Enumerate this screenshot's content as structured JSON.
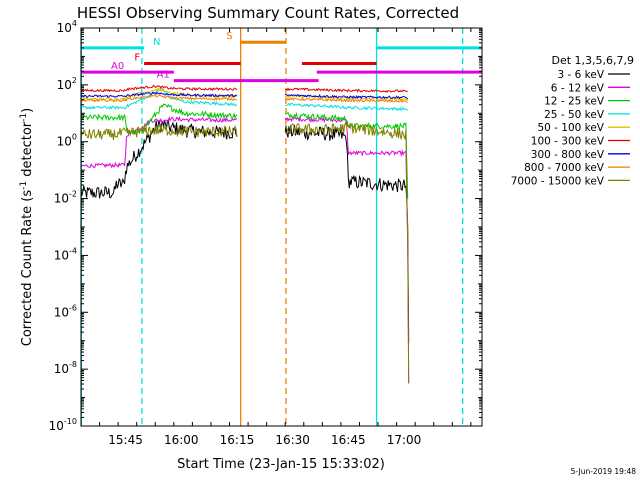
{
  "chart_data": {
    "type": "line",
    "title": "HESSI Observing Summary Count Rates, Corrected",
    "xlabel": "Start Time (23-Jan-15 15:33:02)",
    "ylabel_main": "Corrected Count Rate (s",
    "ylabel_sup1": "-1",
    "ylabel_mid": " detector",
    "ylabel_sup2": "-1",
    "ylabel_end": ")",
    "yscale": "log",
    "ylim_exp": [
      -10,
      4
    ],
    "xlim_min": [
      0,
      108
    ],
    "x_ticks": [
      {
        "min": 12,
        "label": "15:45"
      },
      {
        "min": 27,
        "label": "16:00"
      },
      {
        "min": 42,
        "label": "16:15"
      },
      {
        "min": 57,
        "label": "16:30"
      },
      {
        "min": 72,
        "label": "16:45"
      },
      {
        "min": 87,
        "label": "17:00"
      }
    ],
    "y_ticks": [
      {
        "exp": 4,
        "base": "10",
        "sup": "4"
      },
      {
        "exp": 2,
        "base": "10",
        "sup": "2"
      },
      {
        "exp": 0,
        "base": "10",
        "sup": "0"
      },
      {
        "exp": -2,
        "base": "10",
        "sup": "-2"
      },
      {
        "exp": -4,
        "base": "10",
        "sup": "-4"
      },
      {
        "exp": -6,
        "base": "10",
        "sup": "-6"
      },
      {
        "exp": -8,
        "base": "10",
        "sup": "-8"
      },
      {
        "exp": -10,
        "base": "10",
        "sup": "-10"
      }
    ],
    "legend_title": "Det 1,3,5,6,7,9",
    "legend": [
      {
        "label": "3 - 6 keV",
        "color": "#000000"
      },
      {
        "label": "6 - 12 keV",
        "color": "#e000e0"
      },
      {
        "label": "12 - 25 keV",
        "color": "#00c800"
      },
      {
        "label": "25 - 50 keV",
        "color": "#00e0e0"
      },
      {
        "label": "50 - 100 keV",
        "color": "#e0c000"
      },
      {
        "label": "100 - 300 keV",
        "color": "#e00000"
      },
      {
        "label": "300 - 800 keV",
        "color": "#0000e0"
      },
      {
        "label": "800 - 7000 keV",
        "color": "#f08000"
      },
      {
        "label": "7000 - 15000 keV",
        "color": "#808000"
      }
    ],
    "series": [
      {
        "name": "3 - 6 keV",
        "color": "#000000",
        "noise": 0.25,
        "points": [
          [
            0,
            -1.8
          ],
          [
            9,
            -1.8
          ],
          [
            9.5,
            -1.5
          ],
          [
            11.5,
            -1.5
          ],
          [
            12.2,
            -0.9
          ],
          [
            18,
            0.1
          ],
          [
            20,
            0.5
          ],
          [
            22,
            0.6
          ],
          [
            24,
            0.5
          ],
          [
            28,
            0.4
          ],
          [
            32,
            0.35
          ],
          [
            36,
            0.33
          ],
          [
            42,
            0.33
          ],
          [
            51,
            0.35
          ],
          [
            57,
            0.35
          ],
          [
            66,
            0.28
          ],
          [
            70,
            0.22
          ],
          [
            71.5,
            0.15
          ],
          [
            72,
            -1.4
          ],
          [
            86,
            -1.55
          ],
          [
            87.5,
            -1.55
          ],
          [
            88,
            -3.0
          ],
          [
            88.4,
            -9.5
          ]
        ]
      },
      {
        "name": "6 - 12 keV",
        "color": "#e000e0",
        "noise": 0.07,
        "points": [
          [
            0,
            -0.85
          ],
          [
            11.8,
            -0.82
          ],
          [
            12.3,
            0.25
          ],
          [
            17,
            0.55
          ],
          [
            19,
            0.75
          ],
          [
            22,
            0.75
          ],
          [
            24,
            0.8
          ],
          [
            28,
            0.78
          ],
          [
            36,
            0.76
          ],
          [
            42,
            0.76
          ],
          [
            57,
            0.8
          ],
          [
            66,
            0.77
          ],
          [
            71.5,
            0.75
          ],
          [
            72,
            -0.4
          ],
          [
            87.5,
            -0.4
          ],
          [
            88,
            -3.5
          ],
          [
            88.3,
            -9.5
          ]
        ]
      },
      {
        "name": "12 - 25 keV",
        "color": "#00c800",
        "noise": 0.1,
        "points": [
          [
            0,
            0.85
          ],
          [
            11.8,
            0.85
          ],
          [
            12.3,
            0.35
          ],
          [
            16,
            0.3
          ],
          [
            18,
            0.65
          ],
          [
            22,
            1.25
          ],
          [
            24,
            1.2
          ],
          [
            28,
            1.0
          ],
          [
            36,
            0.95
          ],
          [
            42,
            0.9
          ],
          [
            57,
            0.95
          ],
          [
            66,
            0.85
          ],
          [
            71.8,
            0.8
          ],
          [
            72,
            0.55
          ],
          [
            87.5,
            0.55
          ],
          [
            88,
            -2.0
          ],
          [
            88.2,
            -3.8
          ]
        ]
      },
      {
        "name": "25 - 50 keV",
        "color": "#00e0e0",
        "noise": 0.05,
        "points": [
          [
            0,
            1.2
          ],
          [
            11.8,
            1.2
          ],
          [
            12.5,
            1.25
          ],
          [
            22,
            1.85
          ],
          [
            24,
            1.55
          ],
          [
            28,
            1.4
          ],
          [
            36,
            1.35
          ],
          [
            42,
            1.3
          ],
          [
            57,
            1.3
          ],
          [
            66,
            1.25
          ],
          [
            72,
            1.2
          ],
          [
            87.5,
            1.15
          ],
          [
            88,
            1.1
          ]
        ]
      },
      {
        "name": "50 - 100 keV",
        "color": "#e0c000",
        "noise": 0.05,
        "points": [
          [
            0,
            1.5
          ],
          [
            11.8,
            1.5
          ],
          [
            12.5,
            1.6
          ],
          [
            21,
            1.85
          ],
          [
            24,
            1.7
          ],
          [
            28,
            1.65
          ],
          [
            36,
            1.6
          ],
          [
            42,
            1.6
          ],
          [
            57,
            1.6
          ],
          [
            66,
            1.55
          ],
          [
            72,
            1.52
          ],
          [
            87.5,
            1.5
          ],
          [
            88,
            1.45
          ]
        ]
      },
      {
        "name": "100 - 300 keV",
        "color": "#e00000",
        "noise": 0.04,
        "points": [
          [
            0,
            1.8
          ],
          [
            11.8,
            1.8
          ],
          [
            12.5,
            1.85
          ],
          [
            20,
            1.95
          ],
          [
            24,
            1.88
          ],
          [
            28,
            1.86
          ],
          [
            42,
            1.85
          ],
          [
            57,
            1.85
          ],
          [
            66,
            1.82
          ],
          [
            72,
            1.8
          ],
          [
            87.5,
            1.78
          ],
          [
            88,
            1.75
          ]
        ]
      },
      {
        "name": "300 - 800 keV",
        "color": "#0000e0",
        "noise": 0.04,
        "points": [
          [
            0,
            1.6
          ],
          [
            11.8,
            1.6
          ],
          [
            12.5,
            1.62
          ],
          [
            20,
            1.72
          ],
          [
            24,
            1.66
          ],
          [
            28,
            1.64
          ],
          [
            42,
            1.62
          ],
          [
            57,
            1.63
          ],
          [
            66,
            1.6
          ],
          [
            72,
            1.57
          ],
          [
            87.5,
            1.56
          ],
          [
            88,
            1.5
          ]
        ]
      },
      {
        "name": "800 - 7000 keV",
        "color": "#f08000",
        "noise": 0.04,
        "points": [
          [
            0,
            1.45
          ],
          [
            11.8,
            1.45
          ],
          [
            12.5,
            1.5
          ],
          [
            20,
            1.62
          ],
          [
            24,
            1.55
          ],
          [
            28,
            1.52
          ],
          [
            42,
            1.5
          ],
          [
            57,
            1.5
          ],
          [
            66,
            1.47
          ],
          [
            72,
            1.45
          ],
          [
            87.5,
            1.42
          ],
          [
            88,
            1.38
          ]
        ]
      },
      {
        "name": "7000 - 15000 keV",
        "color": "#808000",
        "noise": 0.2,
        "points": [
          [
            0,
            0.25
          ],
          [
            8,
            0.25
          ],
          [
            11.8,
            0.3
          ],
          [
            12.5,
            0.3
          ],
          [
            18,
            0.4
          ],
          [
            24,
            0.4
          ],
          [
            30,
            0.35
          ],
          [
            42,
            0.35
          ],
          [
            57,
            0.45
          ],
          [
            66,
            0.42
          ],
          [
            72,
            0.5
          ],
          [
            87.5,
            0.25
          ],
          [
            88,
            -3.5
          ],
          [
            88.3,
            -9.5
          ]
        ]
      }
    ],
    "gaps": [
      [
        42,
        55
      ]
    ],
    "vlines": [
      {
        "min": 0.1,
        "color": "#00e0e0",
        "dash": false
      },
      {
        "min": 16.4,
        "color": "#00e0e0",
        "dash": true
      },
      {
        "min": 43.0,
        "color": "#f08000",
        "dash": false
      },
      {
        "min": 55.2,
        "color": "#f08000",
        "dash": true
      },
      {
        "min": 79.6,
        "color": "#00e0e0",
        "dash": false
      },
      {
        "min": 102.8,
        "color": "#00e0e0",
        "dash": true
      }
    ],
    "flag_bars": [
      {
        "label": "N",
        "color": "#00e0e0",
        "exp": 3.3,
        "segments": [
          [
            0,
            17
          ],
          [
            79.6,
            108
          ]
        ]
      },
      {
        "label": "S",
        "color": "#f08000",
        "exp": 3.5,
        "segments": [
          [
            43,
            55.2
          ]
        ]
      },
      {
        "label": "F",
        "color": "#e00000",
        "exp": 2.75,
        "segments": [
          [
            17,
            43
          ],
          [
            59.5,
            79.6
          ]
        ]
      },
      {
        "label": "A0",
        "color": "#e000e0",
        "exp": 2.45,
        "segments": [
          [
            0,
            25
          ],
          [
            63.5,
            108
          ]
        ]
      },
      {
        "label": "A1",
        "color": "#e000e0",
        "exp": 2.15,
        "segments": [
          [
            25,
            64
          ]
        ]
      }
    ],
    "footer_date": "5-Jun-2019 19:48"
  }
}
